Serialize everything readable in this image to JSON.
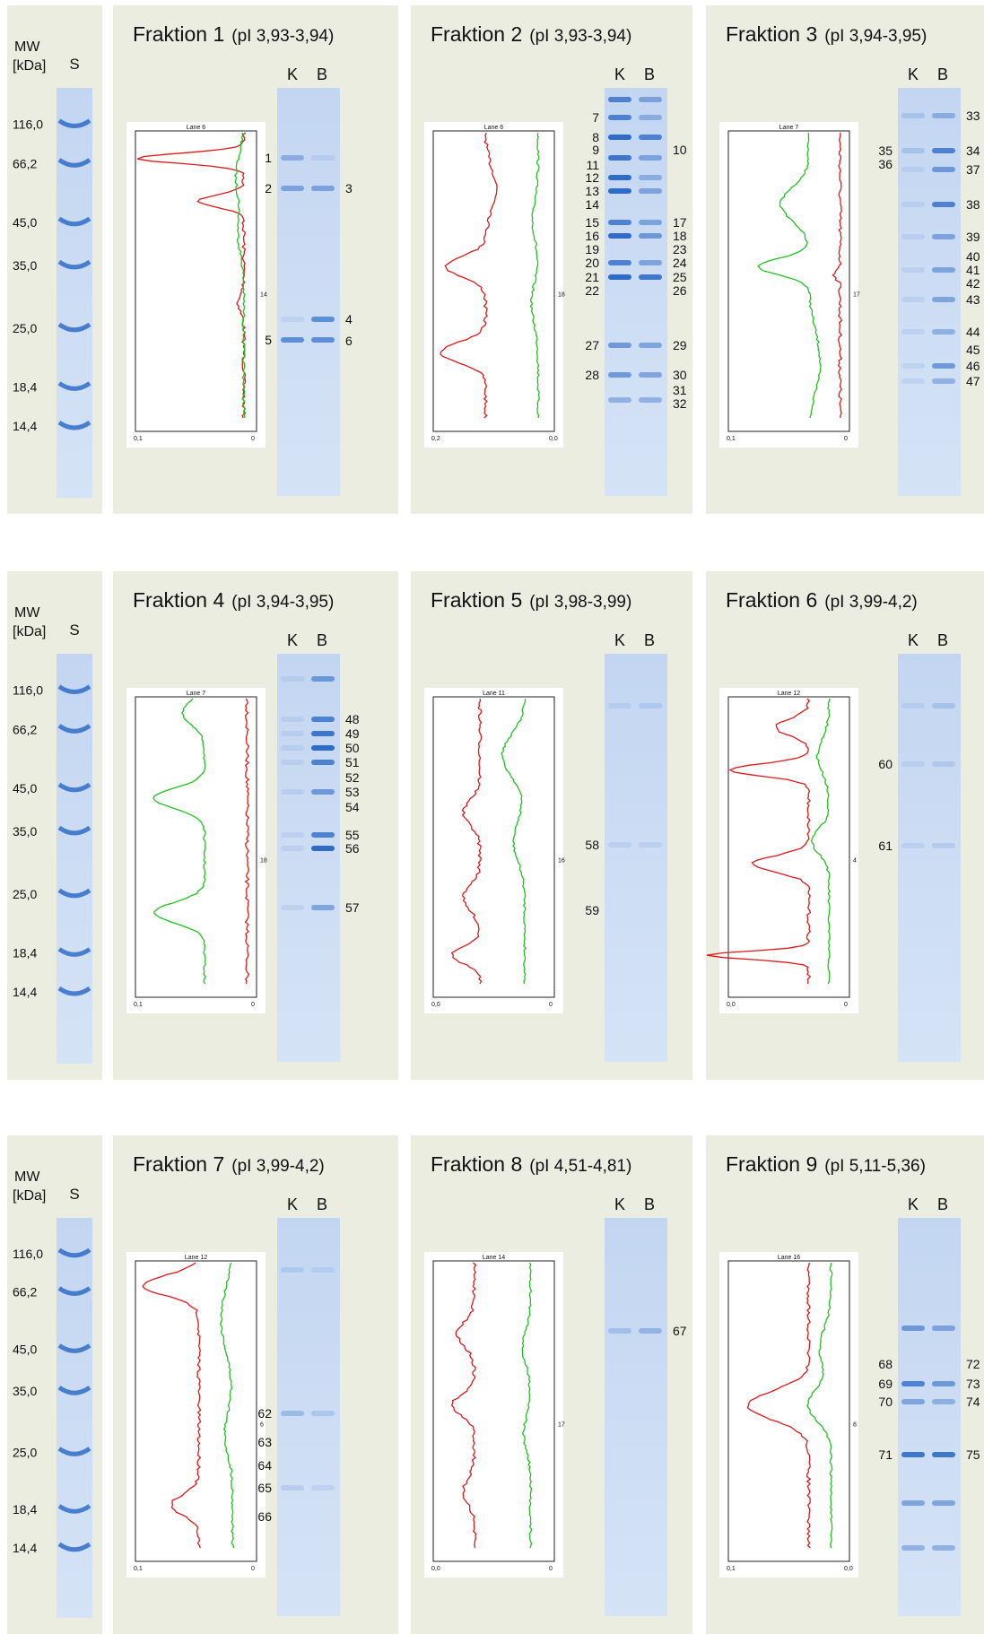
{
  "mw_panel": {
    "title": "MW\n[kDa]",
    "lane": "S",
    "markers": [
      "116,0",
      "66,2",
      "45,0",
      "35,0",
      "25,0",
      "18,4",
      "14,4"
    ]
  },
  "fractions": [
    {
      "name": "Fraktion 1",
      "pi": "(pI 3,93-3,94)",
      "lanes": [
        "K",
        "B"
      ],
      "plot": {
        "lane": "Lane  6",
        "x_left": "0,1",
        "x_right": "0",
        "tick": "14"
      },
      "bands": [
        {
          "id": "1",
          "side": "left"
        },
        {
          "id": "2",
          "side": "left"
        },
        {
          "id": "3",
          "side": "right"
        },
        {
          "id": "4",
          "side": "right"
        },
        {
          "id": "5",
          "side": "left"
        },
        {
          "id": "6",
          "side": "right"
        }
      ]
    },
    {
      "name": "Fraktion 2",
      "pi": "(pI 3,93-3,94)",
      "lanes": [
        "K",
        "B"
      ],
      "plot": {
        "lane": "Lane  6",
        "x_left": "0,2",
        "x_right": "0,0",
        "tick": "18"
      },
      "bands": [
        {
          "id": "7",
          "side": "left"
        },
        {
          "id": "8",
          "side": "left"
        },
        {
          "id": "9",
          "side": "left"
        },
        {
          "id": "10",
          "side": "right"
        },
        {
          "id": "11",
          "side": "left"
        },
        {
          "id": "12",
          "side": "left"
        },
        {
          "id": "13",
          "side": "left"
        },
        {
          "id": "14",
          "side": "left"
        },
        {
          "id": "15",
          "side": "left"
        },
        {
          "id": "17",
          "side": "right"
        },
        {
          "id": "16",
          "side": "left"
        },
        {
          "id": "18",
          "side": "right"
        },
        {
          "id": "19",
          "side": "left"
        },
        {
          "id": "23",
          "side": "right"
        },
        {
          "id": "20",
          "side": "left"
        },
        {
          "id": "24",
          "side": "right"
        },
        {
          "id": "21",
          "side": "left"
        },
        {
          "id": "25",
          "side": "right"
        },
        {
          "id": "22",
          "side": "left"
        },
        {
          "id": "26",
          "side": "right"
        },
        {
          "id": "27",
          "side": "left"
        },
        {
          "id": "29",
          "side": "right"
        },
        {
          "id": "28",
          "side": "left"
        },
        {
          "id": "30",
          "side": "right"
        },
        {
          "id": "31",
          "side": "right"
        },
        {
          "id": "32",
          "side": "right"
        }
      ]
    },
    {
      "name": "Fraktion 3",
      "pi": "(pI 3,94-3,95)",
      "lanes": [
        "K",
        "B"
      ],
      "plot": {
        "lane": "Lane  7",
        "x_left": "0,1",
        "x_right": "0",
        "tick": "17"
      },
      "bands": [
        {
          "id": "33",
          "side": "right"
        },
        {
          "id": "35",
          "side": "left"
        },
        {
          "id": "34",
          "side": "right"
        },
        {
          "id": "36",
          "side": "left"
        },
        {
          "id": "37",
          "side": "right"
        },
        {
          "id": "38",
          "side": "right"
        },
        {
          "id": "39",
          "side": "right"
        },
        {
          "id": "40",
          "side": "right"
        },
        {
          "id": "41",
          "side": "right"
        },
        {
          "id": "42",
          "side": "right"
        },
        {
          "id": "43",
          "side": "right"
        },
        {
          "id": "44",
          "side": "right"
        },
        {
          "id": "45",
          "side": "right"
        },
        {
          "id": "46",
          "side": "right"
        },
        {
          "id": "47",
          "side": "right"
        }
      ]
    },
    {
      "name": "Fraktion 4",
      "pi": "(pI 3,94-3,95)",
      "lanes": [
        "K",
        "B"
      ],
      "plot": {
        "lane": "Lane  7",
        "x_left": "0,1",
        "x_right": "0",
        "tick": "18"
      },
      "bands": [
        {
          "id": "48",
          "side": "right"
        },
        {
          "id": "49",
          "side": "right"
        },
        {
          "id": "50",
          "side": "right"
        },
        {
          "id": "51",
          "side": "right"
        },
        {
          "id": "52",
          "side": "right"
        },
        {
          "id": "53",
          "side": "right"
        },
        {
          "id": "54",
          "side": "right"
        },
        {
          "id": "55",
          "side": "right"
        },
        {
          "id": "56",
          "side": "right"
        },
        {
          "id": "57",
          "side": "right"
        }
      ]
    },
    {
      "name": "Fraktion 5",
      "pi": "(pI 3,98-3,99)",
      "lanes": [
        "K",
        "B"
      ],
      "plot": {
        "lane": "Lane  11",
        "x_left": "0,0",
        "x_right": "0",
        "tick": "16"
      },
      "bands": [
        {
          "id": "58",
          "side": "left"
        },
        {
          "id": "59",
          "side": "left"
        }
      ]
    },
    {
      "name": "Fraktion 6",
      "pi": "(pI 3,99-4,2)",
      "lanes": [
        "K",
        "B"
      ],
      "plot": {
        "lane": "Lane  12",
        "x_left": "0,0",
        "x_right": "0",
        "tick": "4"
      },
      "bands": [
        {
          "id": "60",
          "side": "left"
        },
        {
          "id": "61",
          "side": "left"
        }
      ]
    },
    {
      "name": "Fraktion 7",
      "pi": "(pI 3,99-4,2)",
      "lanes": [
        "K",
        "B"
      ],
      "plot": {
        "lane": "Lane  12",
        "x_left": "0,1",
        "x_right": "0",
        "tick": "6"
      },
      "bands": [
        {
          "id": "62",
          "side": "left"
        },
        {
          "id": "63",
          "side": "left"
        },
        {
          "id": "64",
          "side": "left"
        },
        {
          "id": "65",
          "side": "left"
        },
        {
          "id": "66",
          "side": "left"
        }
      ]
    },
    {
      "name": "Fraktion 8",
      "pi": "(pI 4,51-4,81)",
      "lanes": [
        "K",
        "B"
      ],
      "plot": {
        "lane": "Lane  14",
        "x_left": "0,0",
        "x_right": "0",
        "tick": "17"
      },
      "bands": [
        {
          "id": "67",
          "side": "right"
        }
      ]
    },
    {
      "name": "Fraktion 9",
      "pi": "(pI 5,11-5,36)",
      "lanes": [
        "K",
        "B"
      ],
      "plot": {
        "lane": "Lane  16",
        "x_left": "0,1",
        "x_right": "0,0",
        "tick": "8"
      },
      "bands": [
        {
          "id": "68",
          "side": "left"
        },
        {
          "id": "72",
          "side": "right"
        },
        {
          "id": "69",
          "side": "left"
        },
        {
          "id": "73",
          "side": "right"
        },
        {
          "id": "70",
          "side": "left"
        },
        {
          "id": "74",
          "side": "right"
        },
        {
          "id": "71",
          "side": "left"
        },
        {
          "id": "75",
          "side": "right"
        }
      ]
    }
  ],
  "colors": {
    "panel_bg": "#eaede0",
    "gel_bg": "#c9dbf2",
    "band": "#2f6cc8",
    "red_trace": "#e01818",
    "green_trace": "#1fc21f"
  }
}
